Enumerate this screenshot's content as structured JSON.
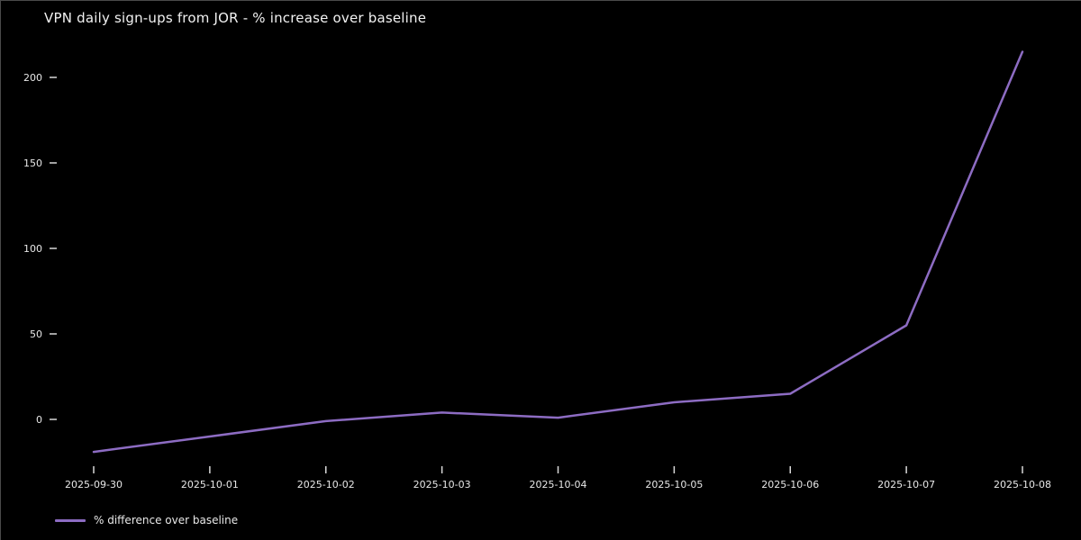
{
  "chart_data": {
    "type": "line",
    "title": "VPN daily sign-ups from JOR - % increase over baseline",
    "x": [
      "2025-09-30",
      "2025-10-01",
      "2025-10-02",
      "2025-10-03",
      "2025-10-04",
      "2025-10-05",
      "2025-10-06",
      "2025-10-07",
      "2025-10-08"
    ],
    "series": [
      {
        "name": "% difference over baseline",
        "values": [
          -19,
          -10,
          -1,
          4,
          1,
          10,
          15,
          55,
          215
        ]
      }
    ],
    "xlabel": "",
    "ylabel": "",
    "yticks": [
      0,
      50,
      100,
      150,
      200
    ],
    "ylim": [
      -30,
      225
    ],
    "grid": false,
    "legend_position": "lower-left",
    "colors": {
      "background": "#000000",
      "line": "#8d6cc3",
      "tick_text": "#e8e8e8",
      "tick_mark": "#d8d8d8",
      "title_text": "#f2f2f2"
    }
  }
}
